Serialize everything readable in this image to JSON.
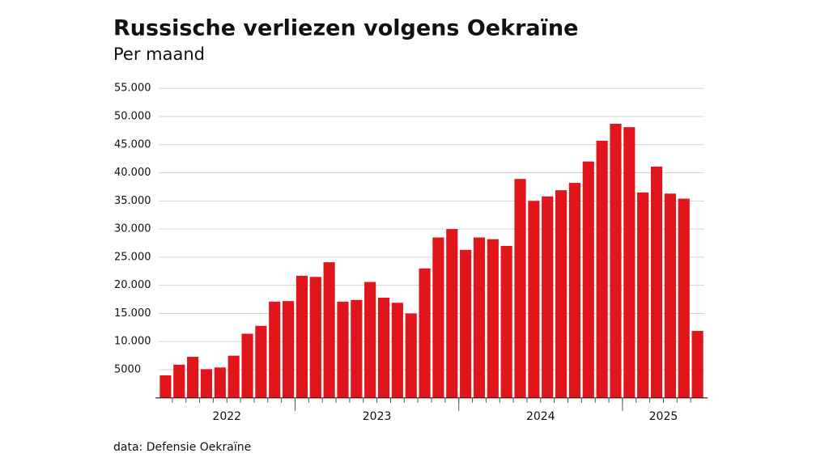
{
  "chart_data": {
    "type": "bar",
    "title": "Russische verliezen volgens Oekraïne",
    "subtitle": "Per maand",
    "source": "data: Defensie Oekraïne",
    "color": "#e0161c",
    "grid": true,
    "categories": [
      null,
      null,
      null,
      null,
      null,
      null,
      null,
      null,
      null,
      null,
      null,
      null,
      null,
      null,
      null,
      null,
      null,
      null,
      null,
      null,
      null,
      null,
      null,
      null,
      null,
      null,
      null,
      null,
      null,
      null,
      null,
      null,
      null,
      null,
      null,
      null,
      null,
      null,
      null,
      null
    ],
    "groups": [
      {
        "label": "2022",
        "size": 10
      },
      {
        "label": "2023",
        "size": 12
      },
      {
        "label": "2024",
        "size": 12
      },
      {
        "label": "2025",
        "size": 6
      }
    ],
    "values": [
      4000,
      5900,
      7300,
      5100,
      5400,
      7500,
      11400,
      12800,
      17100,
      17200,
      21700,
      21500,
      24100,
      17100,
      17400,
      20600,
      17800,
      16900,
      15000,
      23000,
      28500,
      30000,
      26300,
      28500,
      28200,
      27000,
      38900,
      35000,
      35800,
      36900,
      38200,
      42000,
      45700,
      48700,
      48100,
      36500,
      41100,
      36300,
      35400,
      11900
    ],
    "ylim": [
      0,
      55000
    ],
    "yticks": [
      {
        "value": 5000,
        "label": "5000"
      },
      {
        "value": 10000,
        "label": "10.000"
      },
      {
        "value": 15000,
        "label": "15.000"
      },
      {
        "value": 20000,
        "label": "20.000"
      },
      {
        "value": 25000,
        "label": "25.000"
      },
      {
        "value": 30000,
        "label": "30.000"
      },
      {
        "value": 35000,
        "label": "35.000"
      },
      {
        "value": 40000,
        "label": "40.000"
      },
      {
        "value": 45000,
        "label": "45.000"
      },
      {
        "value": 50000,
        "label": "50.000"
      },
      {
        "value": 55000,
        "label": "55.000"
      }
    ]
  }
}
